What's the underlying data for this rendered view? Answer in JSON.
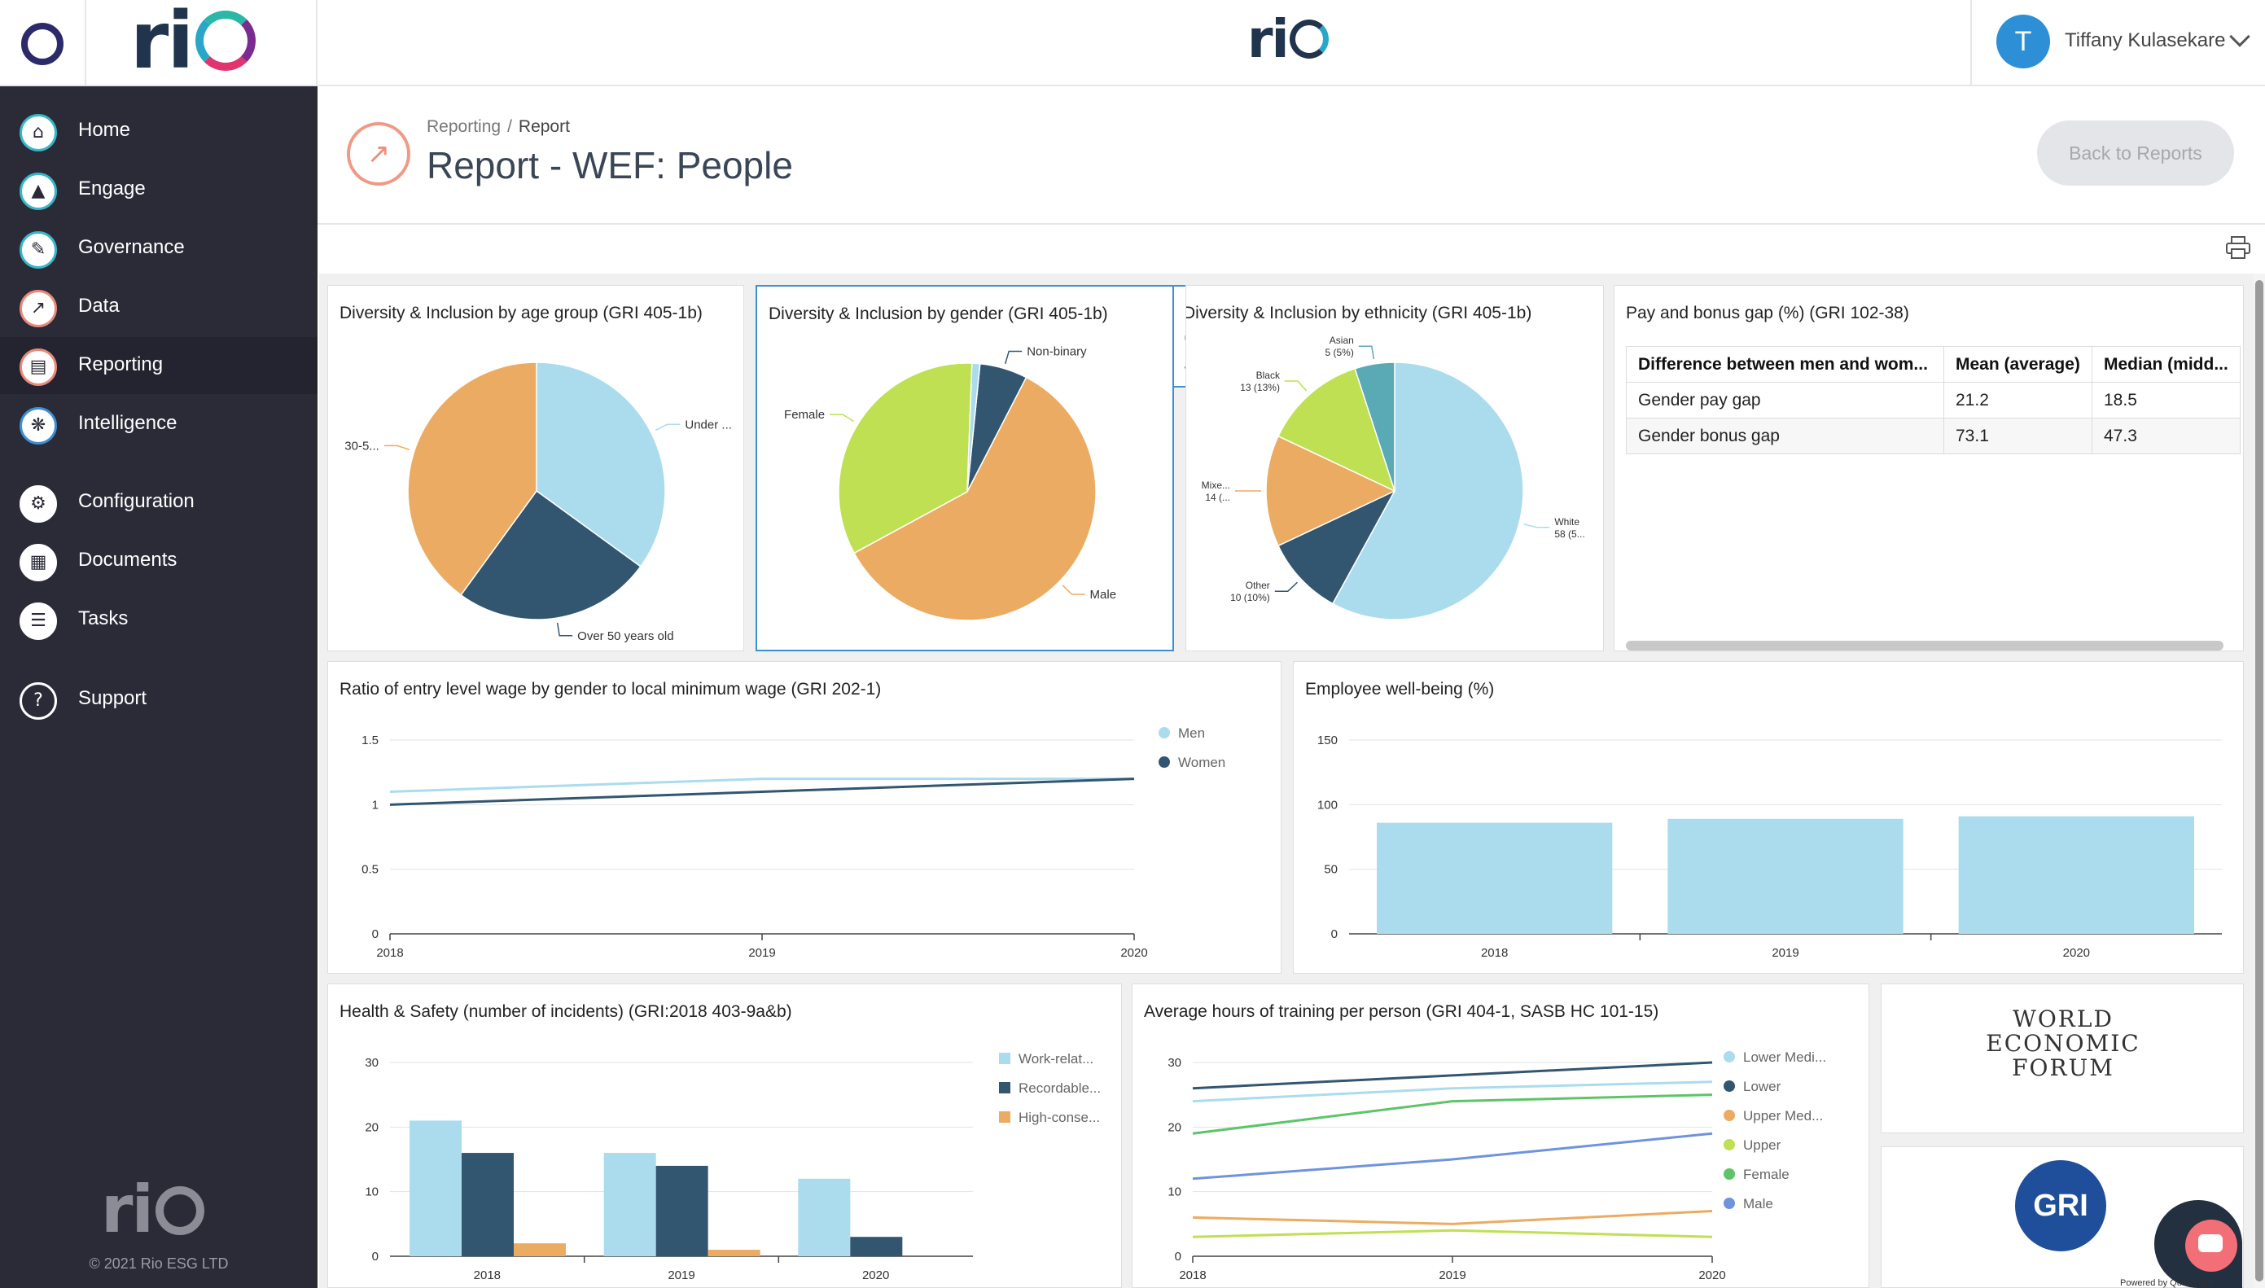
{
  "brand": {
    "logo_text": "rio",
    "copyright": "© 2021 Rio ESG LTD"
  },
  "user": {
    "initial": "T",
    "name": "Tiffany Kulasekare"
  },
  "sidebar": {
    "items": [
      {
        "label": "Home",
        "icon": "⌂"
      },
      {
        "label": "Engage",
        "icon": "▲"
      },
      {
        "label": "Governance",
        "icon": "✎"
      },
      {
        "label": "Data",
        "icon": "↗"
      },
      {
        "label": "Reporting",
        "icon": "▤"
      },
      {
        "label": "Intelligence",
        "icon": "❋"
      },
      {
        "label": "Configuration",
        "icon": "⚙"
      },
      {
        "label": "Documents",
        "icon": "▦"
      },
      {
        "label": "Tasks",
        "icon": "☰"
      },
      {
        "label": "Support",
        "icon": "?"
      }
    ]
  },
  "header": {
    "breadcrumb": {
      "parent": "Reporting",
      "separator": "/",
      "current": "Report"
    },
    "title": "Report - WEF: People",
    "back_label": "Back to Reports"
  },
  "colors": {
    "light_blue": "#abdcee",
    "navy": "#335670",
    "orange": "#ecab62",
    "lime": "#bfe052",
    "teal": "#5aaab5",
    "green": "#5ec46a",
    "blue": "#6f93dc"
  },
  "pay_table": {
    "title": "Pay and bonus gap (%) (GRI 102-38)",
    "headers": [
      "Difference between men and wom...",
      "Mean (average)",
      "Median (midd..."
    ],
    "rows": [
      [
        "Gender pay gap",
        "21.2",
        "18.5"
      ],
      [
        "Gender bonus gap",
        "73.1",
        "47.3"
      ]
    ]
  },
  "logos": {
    "wef": [
      "WORLD",
      "ECONOMIC",
      "FORUM"
    ],
    "gri": "GRI"
  },
  "chat": {
    "badge": "Powered by QuickSight"
  },
  "chart_data": [
    {
      "type": "pie",
      "title": "Diversity & Inclusion by age group (GRI 405-1b)",
      "slices": [
        {
          "label": "Under ...",
          "value": 35,
          "color": "#abdcee"
        },
        {
          "label": "Over 50 years old",
          "value": 25,
          "color": "#335670"
        },
        {
          "label": "30-5...",
          "value": 40,
          "color": "#ecab62"
        }
      ]
    },
    {
      "type": "pie",
      "title": "Diversity & Inclusion by gender (GRI 405-1b)",
      "slices": [
        {
          "label": "Non-binary",
          "value": 6,
          "color": "#335670"
        },
        {
          "label": "Male",
          "value": 59.5,
          "color": "#ecab62"
        },
        {
          "label": "Female",
          "value": 33.5,
          "color": "#bfe052"
        },
        {
          "label": "",
          "value": 1,
          "color": "#abdcee"
        }
      ]
    },
    {
      "type": "pie",
      "title": "Diversity & Inclusion by ethnicity (GRI 405-1b)",
      "slices": [
        {
          "label": "White",
          "sublabel": "58 (5...",
          "value": 58,
          "color": "#abdcee"
        },
        {
          "label": "Other",
          "sublabel": "10 (10%)",
          "value": 10,
          "color": "#335670"
        },
        {
          "label": "Mixe...",
          "sublabel": "14 (...",
          "value": 14,
          "color": "#ecab62"
        },
        {
          "label": "Black",
          "sublabel": "13 (13%)",
          "value": 13,
          "color": "#bfe052"
        },
        {
          "label": "Asian",
          "sublabel": "5 (5%)",
          "value": 5,
          "color": "#5aaab5"
        }
      ]
    },
    {
      "type": "line",
      "title": "Ratio of entry level wage by gender to local minimum wage (GRI 202-1)",
      "x": [
        "2018",
        "2019",
        "2020"
      ],
      "ylim": [
        0,
        1.5
      ],
      "yticks": [
        "0",
        "0.5",
        "1",
        "1.5"
      ],
      "series": [
        {
          "name": "Men",
          "values": [
            1.1,
            1.2,
            1.2
          ],
          "color": "#abdcee"
        },
        {
          "name": "Women",
          "values": [
            1.0,
            1.1,
            1.2
          ],
          "color": "#335670"
        }
      ]
    },
    {
      "type": "bar",
      "title": "Employee well-being (%)",
      "categories": [
        "2018",
        "2019",
        "2020"
      ],
      "values": [
        86,
        89,
        91
      ],
      "ylim": [
        0,
        150
      ],
      "yticks": [
        "0",
        "50",
        "100",
        "150"
      ],
      "color": "#abdcee"
    },
    {
      "type": "bar",
      "title": "Health & Safety (number of incidents) (GRI:2018 403-9a&b)",
      "categories": [
        "2018",
        "2019",
        "2020"
      ],
      "ylim": [
        0,
        30
      ],
      "yticks": [
        "0",
        "10",
        "20",
        "30"
      ],
      "series": [
        {
          "name": "Work-relat...",
          "values": [
            21,
            16,
            12
          ],
          "color": "#abdcee"
        },
        {
          "name": "Recordable...",
          "values": [
            16,
            14,
            3
          ],
          "color": "#335670"
        },
        {
          "name": "High-conse...",
          "values": [
            2,
            1,
            0
          ],
          "color": "#ecab62"
        }
      ]
    },
    {
      "type": "line",
      "title": "Average hours of training per person (GRI 404-1, SASB HC 101-15)",
      "x": [
        "2018",
        "2019",
        "2020"
      ],
      "ylim": [
        0,
        30
      ],
      "yticks": [
        "0",
        "10",
        "20",
        "30"
      ],
      "series": [
        {
          "name": "Lower Medi...",
          "values": [
            24,
            26,
            27
          ],
          "color": "#abdcee"
        },
        {
          "name": "Lower",
          "values": [
            26,
            28,
            30
          ],
          "color": "#335670"
        },
        {
          "name": "Upper Med...",
          "values": [
            6,
            5,
            7
          ],
          "color": "#ecab62"
        },
        {
          "name": "Upper",
          "values": [
            3,
            4,
            3
          ],
          "color": "#bfe052"
        },
        {
          "name": "Female",
          "values": [
            19,
            24,
            25
          ],
          "color": "#5ec46a"
        },
        {
          "name": "Male",
          "values": [
            12,
            15,
            19
          ],
          "color": "#6f93dc"
        }
      ]
    }
  ]
}
